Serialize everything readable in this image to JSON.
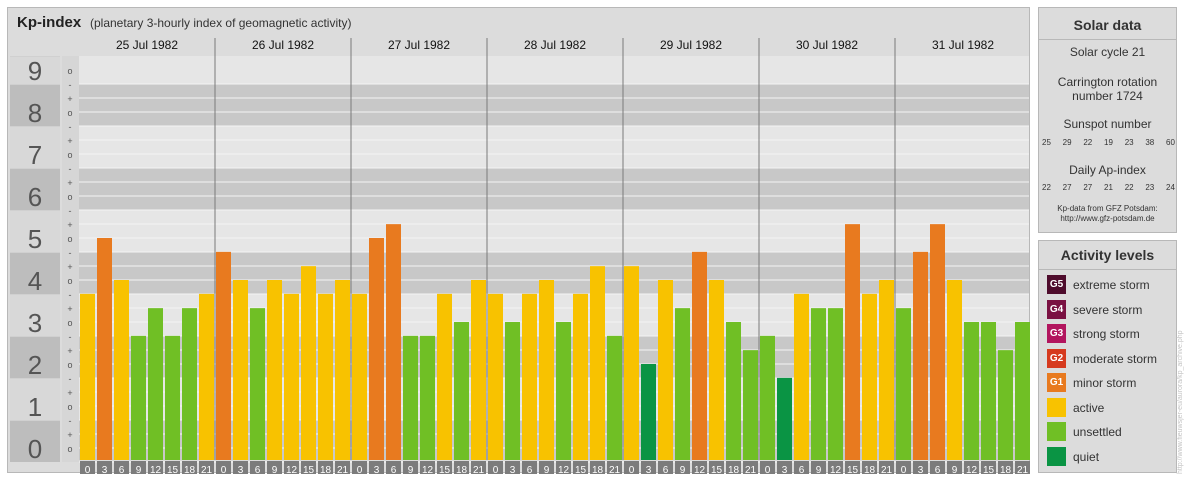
{
  "header": {
    "title": "Kp-index",
    "subtitle": "(planetary 3-hourly index of geomagnetic activity)"
  },
  "chart_data": {
    "type": "bar",
    "title": "Kp-index",
    "subtitle": "(planetary 3-hourly index of geomagnetic activity)",
    "days": [
      "25 Jul 1982",
      "26 Jul 1982",
      "27 Jul 1982",
      "28 Jul 1982",
      "29 Jul 1982",
      "30 Jul 1982",
      "31 Jul 1982"
    ],
    "interval_start_hours": [
      "0",
      "3",
      "6",
      "9",
      "12",
      "15",
      "18",
      "21"
    ],
    "interval_end_hours": [
      "3",
      "6",
      "9",
      "12",
      "15",
      "18",
      "21",
      "24"
    ],
    "y_ticks": [
      "0",
      "1",
      "2",
      "3",
      "4",
      "5",
      "6",
      "7",
      "8",
      "9"
    ],
    "sub_ticks": [
      "o",
      "+",
      "-"
    ],
    "ylim": [
      0,
      9
    ],
    "values": [
      3.67,
      5.0,
      4.0,
      2.67,
      3.33,
      2.67,
      3.33,
      3.67,
      4.67,
      4.0,
      3.33,
      4.0,
      3.67,
      4.33,
      3.67,
      4.0,
      3.67,
      5.0,
      5.33,
      2.67,
      2.67,
      3.67,
      3.0,
      4.0,
      3.67,
      3.0,
      3.67,
      4.0,
      3.0,
      3.67,
      4.33,
      2.67,
      4.33,
      2.0,
      4.0,
      3.33,
      4.67,
      4.0,
      3.0,
      2.33,
      2.67,
      1.67,
      3.67,
      3.33,
      3.33,
      5.33,
      3.67,
      4.0,
      3.33,
      4.67,
      5.33,
      4.0,
      3.0,
      3.0,
      2.33,
      3.0
    ],
    "colors": {
      "quiet": "#0a9444",
      "unsettled": "#70bf25",
      "active": "#f8c200",
      "g1": "#e87a1f",
      "g2": "#d63a1e",
      "g3": "#b2155e",
      "g4": "#7a1142",
      "g5": "#4e0c2c"
    }
  },
  "solar": {
    "title": "Solar data",
    "cycle": "Solar cycle 21",
    "carrington": "Carrington rotation number 1724",
    "sunspot_title": "Sunspot number",
    "sunspots": [
      "25",
      "29",
      "22",
      "19",
      "23",
      "38",
      "60"
    ],
    "ap_title": "Daily Ap-index",
    "ap": [
      "22",
      "27",
      "27",
      "21",
      "22",
      "23",
      "24"
    ],
    "source_line1": "Kp-data from GFZ Potsdam:",
    "source_line2": "http://www.gfz-potsdam.de"
  },
  "activity": {
    "title": "Activity levels",
    "items": [
      {
        "badge": "G5",
        "label": "extreme storm",
        "color": "#4e0c2c"
      },
      {
        "badge": "G4",
        "label": "severe storm",
        "color": "#7a1142"
      },
      {
        "badge": "G3",
        "label": "strong storm",
        "color": "#b2155e"
      },
      {
        "badge": "G2",
        "label": "moderate storm",
        "color": "#d63a1e"
      },
      {
        "badge": "G1",
        "label": "minor storm",
        "color": "#e87a1f"
      },
      {
        "badge": "",
        "label": "active",
        "color": "#f8c200"
      },
      {
        "badge": "",
        "label": "unsettled",
        "color": "#70bf25"
      },
      {
        "badge": "",
        "label": "quiet",
        "color": "#0a9444"
      }
    ]
  },
  "credit": "http://www.fieuwsjer-eu/aurora/kp_archive.php"
}
